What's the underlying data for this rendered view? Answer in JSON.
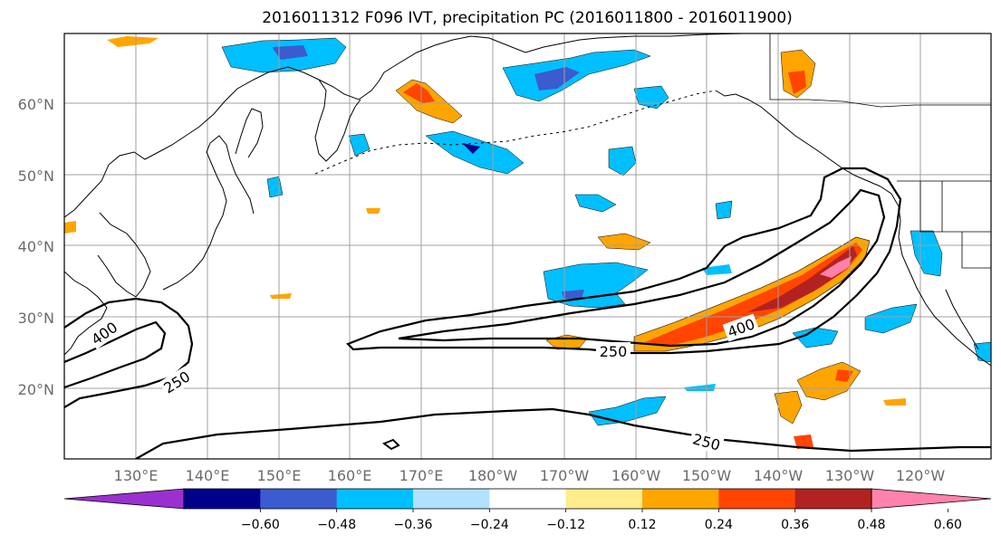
{
  "title": "2016011312 F096 IVT, precipitation PC (2016011800 - 2016011900)",
  "latitude_labels": [
    "20°N",
    "30°N",
    "40°N",
    "50°N",
    "60°N"
  ],
  "longitude_labels": [
    "130°E",
    "140°E",
    "150°E",
    "160°E",
    "170°E",
    "180°W",
    "170°W",
    "160°W",
    "150°W",
    "140°W",
    "130°W",
    "120°W"
  ],
  "colorbar": {
    "tick_labels": [
      "−0.60",
      "−0.48",
      "−0.36",
      "−0.24",
      "−0.12",
      "0.12",
      "0.24",
      "0.36",
      "0.48",
      "0.60"
    ],
    "colors": [
      "#9b30d0",
      "#00008b",
      "#3a5cd0",
      "#00bfff",
      "#b0e2ff",
      "#ffffff",
      "#ffec8b",
      "#ffa500",
      "#ff4500",
      "#b22222",
      "#ff82ab"
    ]
  },
  "contour_labels": {
    "label_400_west": "400",
    "label_250_west": "250",
    "label_250_center": "250",
    "label_400_east": "400",
    "label_250_south": "250"
  },
  "colors": {
    "grid": "#a0a0a0",
    "coast": "#000000",
    "contour": "#000000"
  }
}
